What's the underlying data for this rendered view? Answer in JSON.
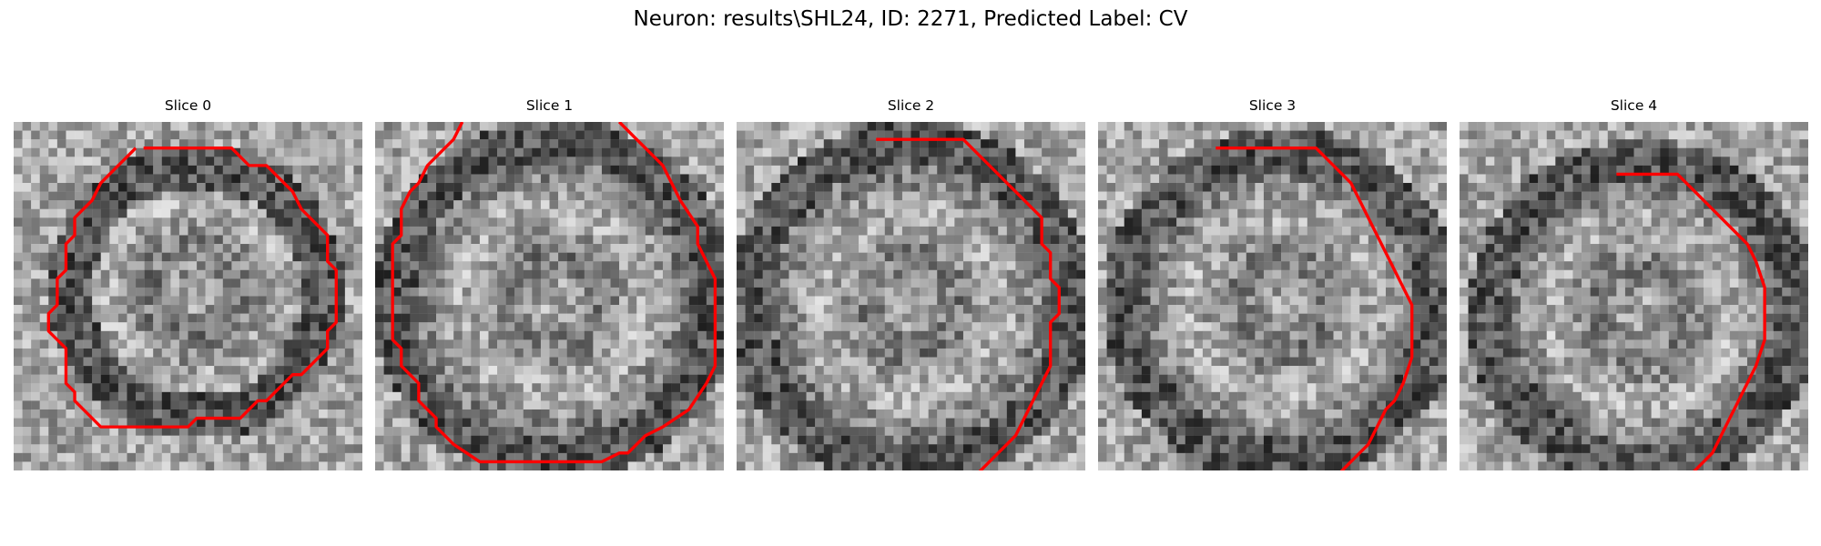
{
  "figure": {
    "title": "Neuron: results\\SHL24, ID: 2271, Predicted Label: CV"
  },
  "colors": {
    "contour": "#ff0000",
    "background": "#ffffff"
  },
  "panels": [
    {
      "title": "Slice 0",
      "contour": [
        [
          14.9,
          3
        ],
        [
          25,
          3
        ],
        [
          27,
          5
        ],
        [
          29,
          5
        ],
        [
          32,
          8
        ],
        [
          33,
          10
        ],
        [
          36,
          13
        ],
        [
          36,
          16
        ],
        [
          37,
          17
        ],
        [
          37,
          23
        ],
        [
          36,
          24
        ],
        [
          36,
          26
        ],
        [
          33,
          29
        ],
        [
          32,
          29
        ],
        [
          31,
          30
        ],
        [
          30,
          31
        ],
        [
          29,
          32
        ],
        [
          28,
          32
        ],
        [
          27,
          33
        ],
        [
          26,
          34
        ],
        [
          21,
          34
        ],
        [
          20,
          35
        ],
        [
          10,
          35
        ],
        [
          7,
          32
        ],
        [
          7,
          31
        ],
        [
          6,
          30
        ],
        [
          6,
          26
        ],
        [
          5,
          25
        ],
        [
          4,
          24
        ],
        [
          4,
          22
        ],
        [
          5,
          21
        ],
        [
          5,
          18
        ],
        [
          6,
          17
        ],
        [
          6,
          14
        ],
        [
          7,
          13
        ],
        [
          7,
          11
        ],
        [
          9,
          9
        ],
        [
          10,
          7
        ],
        [
          11,
          6
        ],
        [
          12,
          5
        ],
        [
          13,
          4
        ],
        [
          14,
          3
        ]
      ]
    },
    {
      "title": "Slice 1",
      "contour": [
        [
          10,
          0
        ],
        [
          9,
          2
        ],
        [
          8,
          3
        ],
        [
          7,
          4
        ],
        [
          6,
          5
        ],
        [
          5,
          7
        ],
        [
          4,
          8
        ],
        [
          3,
          10
        ],
        [
          3,
          13
        ],
        [
          2,
          14
        ],
        [
          2,
          19
        ],
        [
          2,
          25
        ],
        [
          3,
          26
        ],
        [
          3,
          28
        ],
        [
          4,
          29
        ],
        [
          5,
          30
        ],
        [
          5,
          32
        ],
        [
          7,
          34
        ],
        [
          7,
          35
        ],
        [
          8,
          36
        ],
        [
          9,
          37
        ],
        [
          12,
          39
        ],
        [
          18,
          39
        ],
        [
          26,
          39
        ],
        [
          28,
          38
        ],
        [
          29,
          38
        ],
        [
          31,
          36
        ],
        [
          33,
          35
        ],
        [
          36,
          33
        ],
        [
          38,
          30
        ],
        [
          39,
          28
        ],
        [
          39,
          18
        ],
        [
          37,
          14
        ],
        [
          37,
          12
        ],
        [
          35,
          9
        ],
        [
          34,
          7
        ],
        [
          33,
          5
        ],
        [
          31,
          3
        ],
        [
          30,
          2
        ],
        [
          29,
          1
        ],
        [
          28,
          0
        ]
      ]
    },
    {
      "title": "Slice 2",
      "contour": [
        [
          16,
          2
        ],
        [
          26,
          2
        ],
        [
          29,
          5
        ],
        [
          30,
          6
        ],
        [
          31,
          7
        ],
        [
          32,
          8
        ],
        [
          33,
          9
        ],
        [
          34,
          10
        ],
        [
          35,
          11
        ],
        [
          35,
          14
        ],
        [
          36,
          15
        ],
        [
          36,
          18
        ],
        [
          37,
          19
        ],
        [
          37,
          22
        ],
        [
          36,
          23
        ],
        [
          36,
          28
        ],
        [
          35,
          30
        ],
        [
          34,
          32
        ],
        [
          33,
          34
        ],
        [
          32,
          36
        ],
        [
          31,
          37
        ],
        [
          29,
          39
        ],
        [
          27,
          41
        ],
        [
          25,
          43
        ],
        [
          24,
          44
        ],
        [
          23,
          45
        ]
      ]
    },
    {
      "title": "Slice 3",
      "contour": [
        [
          13.5,
          3
        ],
        [
          25,
          3
        ],
        [
          27,
          5
        ],
        [
          28,
          6
        ],
        [
          29,
          7
        ],
        [
          30,
          9
        ],
        [
          31,
          11
        ],
        [
          32,
          13
        ],
        [
          33,
          15
        ],
        [
          34,
          17
        ],
        [
          35,
          19
        ],
        [
          36,
          21
        ],
        [
          36,
          27
        ],
        [
          35,
          30
        ],
        [
          34,
          32
        ],
        [
          33,
          33
        ],
        [
          32,
          35
        ],
        [
          31,
          37
        ],
        [
          30,
          38
        ],
        [
          29,
          39
        ],
        [
          28,
          40
        ],
        [
          27,
          41
        ],
        [
          26,
          42
        ],
        [
          25,
          43
        ],
        [
          24,
          44
        ],
        [
          23,
          45
        ]
      ]
    },
    {
      "title": "Slice 4",
      "contour": [
        [
          18,
          6
        ],
        [
          25,
          6
        ],
        [
          27,
          8
        ],
        [
          29,
          10
        ],
        [
          31,
          12
        ],
        [
          33,
          14
        ],
        [
          34,
          16
        ],
        [
          35,
          19
        ],
        [
          35,
          22
        ],
        [
          35,
          25
        ],
        [
          34,
          28
        ],
        [
          33,
          30
        ],
        [
          32,
          32
        ],
        [
          31,
          34
        ],
        [
          30,
          36
        ],
        [
          29,
          38
        ],
        [
          28,
          39
        ],
        [
          27,
          40
        ],
        [
          26,
          41
        ],
        [
          25,
          42
        ],
        [
          24,
          43
        ]
      ]
    }
  ]
}
